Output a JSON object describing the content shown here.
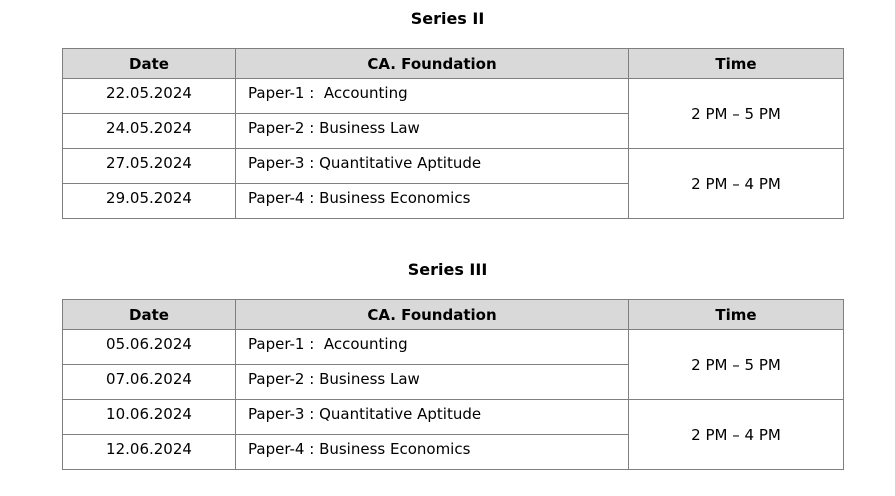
{
  "colors": {
    "header_bg": "#d9d9d9",
    "grid_border": "#7f7f7f",
    "outer_border": "#4d4d4d",
    "text": "#000000",
    "page_bg": "#ffffff"
  },
  "sections": [
    {
      "title": "Series II",
      "columns": [
        "Date",
        "CA. Foundation",
        "Time"
      ],
      "rows": [
        {
          "date": "22.05.2024",
          "paper": "Paper-1 :  Accounting"
        },
        {
          "date": "24.05.2024",
          "paper": "Paper-2 : Business Law"
        },
        {
          "date": "27.05.2024",
          "paper": "Paper-3 : Quantitative Aptitude"
        },
        {
          "date": "29.05.2024",
          "paper": "Paper-4 : Business Economics"
        }
      ],
      "time_groups": [
        {
          "label": "2 PM – 5 PM",
          "rowspan": 2
        },
        {
          "label": "2 PM – 4 PM",
          "rowspan": 2
        }
      ]
    },
    {
      "title": "Series III",
      "columns": [
        "Date",
        "CA. Foundation",
        "Time"
      ],
      "rows": [
        {
          "date": "05.06.2024",
          "paper": "Paper-1 :  Accounting"
        },
        {
          "date": "07.06.2024",
          "paper": "Paper-2 : Business Law"
        },
        {
          "date": "10.06.2024",
          "paper": "Paper-3 : Quantitative Aptitude"
        },
        {
          "date": "12.06.2024",
          "paper": "Paper-4 : Business Economics"
        }
      ],
      "time_groups": [
        {
          "label": "2 PM – 5 PM",
          "rowspan": 2
        },
        {
          "label": "2 PM – 4 PM",
          "rowspan": 2
        }
      ]
    }
  ]
}
